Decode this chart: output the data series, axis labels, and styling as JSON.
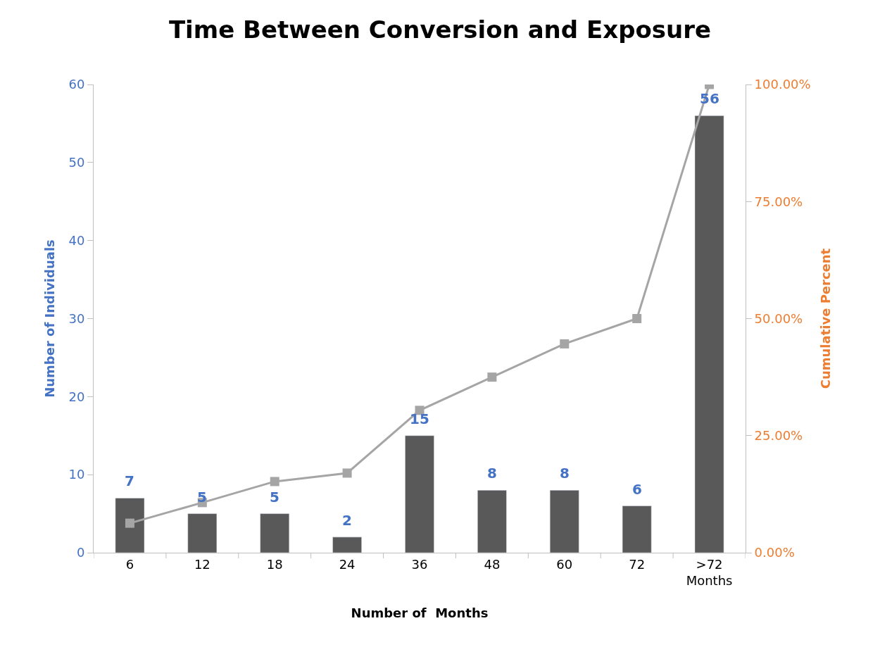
{
  "chart_data": {
    "type": "bar",
    "title": "Time Between Conversion and Exposure",
    "xlabel": "Number of  Months",
    "ylabel": "Number of Individuals",
    "y2label": "Cumulative Percent",
    "categories": [
      "6",
      "12",
      "18",
      "24",
      "36",
      "48",
      "60",
      "72",
      ">72\nMonths"
    ],
    "series": [
      {
        "name": null,
        "color": "#595959",
        "values": [
          7,
          5,
          5,
          2,
          15,
          8,
          8,
          6,
          56
        ],
        "value_labels": [
          "7",
          "5",
          "5",
          "2",
          "15",
          "8",
          "8",
          "6",
          "56"
        ]
      },
      {
        "name": null,
        "type": "line",
        "axis": "y2",
        "color": "#a5a5a5",
        "marker": "square",
        "line_style": "solid",
        "values": [
          6.3,
          10.7,
          15.2,
          17.0,
          30.4,
          37.5,
          44.6,
          50.0,
          100.0
        ]
      }
    ],
    "ylim": [
      0,
      60
    ],
    "yticks": [
      0,
      10,
      20,
      30,
      40,
      50,
      60
    ],
    "y2lim": [
      0,
      100
    ],
    "y2ticks": [
      {
        "value": 0,
        "label": "0.00%"
      },
      {
        "value": 25,
        "label": "25.00%"
      },
      {
        "value": 50,
        "label": "50.00%"
      },
      {
        "value": 75,
        "label": "75.00%"
      },
      {
        "value": 100,
        "label": "100.00%"
      }
    ],
    "grid": false,
    "legend": false
  }
}
